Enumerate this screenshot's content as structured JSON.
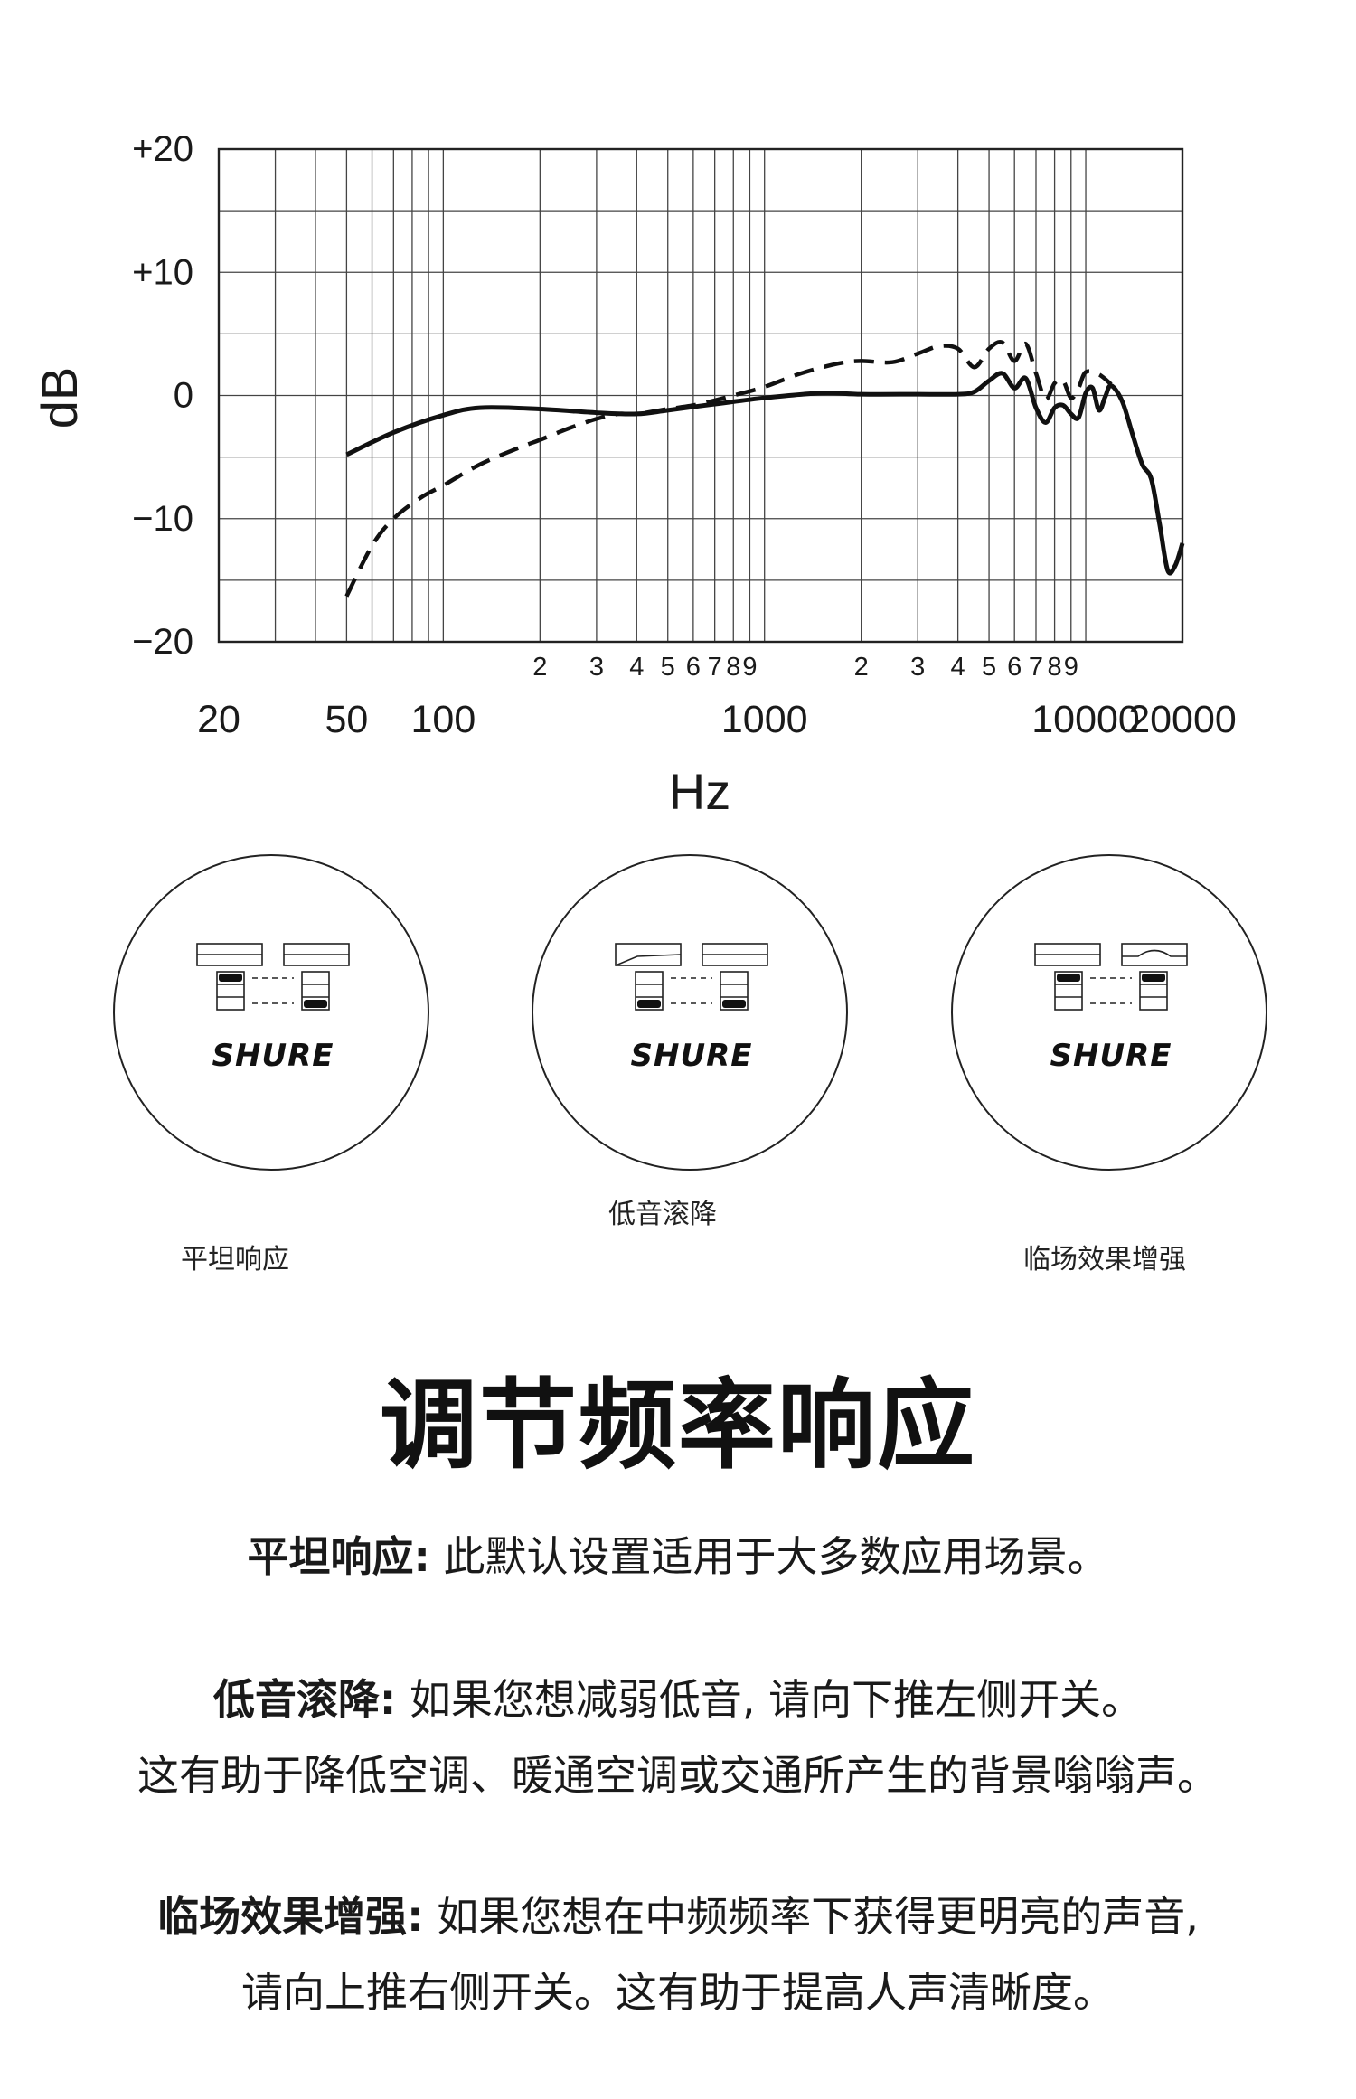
{
  "chart_data": {
    "type": "line",
    "xscale": "log",
    "xlim": [
      20,
      20000
    ],
    "ylim": [
      -20,
      20
    ],
    "xlabel": "Hz",
    "ylabel": "dB",
    "y_ticks": [
      "+20",
      "+10",
      "0",
      "−10",
      "−20"
    ],
    "y_tick_values": [
      20,
      10,
      0,
      -10,
      -20
    ],
    "x_ticks_major": [
      {
        "value": 20,
        "label": "20"
      },
      {
        "value": 50,
        "label": "50"
      },
      {
        "value": 100,
        "label": "100"
      },
      {
        "value": 1000,
        "label": "1000"
      },
      {
        "value": 10000,
        "label": "10000"
      },
      {
        "value": 20000,
        "label": "20000"
      }
    ],
    "x_ticks_minor": [
      {
        "value": 200,
        "label": "2"
      },
      {
        "value": 300,
        "label": "3"
      },
      {
        "value": 400,
        "label": "4"
      },
      {
        "value": 500,
        "label": "5"
      },
      {
        "value": 600,
        "label": "6"
      },
      {
        "value": 700,
        "label": "7"
      },
      {
        "value": 800,
        "label": "8"
      },
      {
        "value": 900,
        "label": "9"
      },
      {
        "value": 2000,
        "label": "2"
      },
      {
        "value": 3000,
        "label": "3"
      },
      {
        "value": 4000,
        "label": "4"
      },
      {
        "value": 5000,
        "label": "5"
      },
      {
        "value": 6000,
        "label": "6"
      },
      {
        "value": 7000,
        "label": "7"
      },
      {
        "value": 8000,
        "label": "8"
      },
      {
        "value": 9000,
        "label": "9"
      }
    ],
    "grid": true,
    "series": [
      {
        "style": "solid",
        "points": [
          [
            50,
            -4.8
          ],
          [
            70,
            -3.0
          ],
          [
            100,
            -1.6
          ],
          [
            130,
            -1.0
          ],
          [
            200,
            -1.1
          ],
          [
            300,
            -1.4
          ],
          [
            400,
            -1.5
          ],
          [
            500,
            -1.2
          ],
          [
            700,
            -0.7
          ],
          [
            1000,
            -0.2
          ],
          [
            1500,
            0.2
          ],
          [
            2000,
            0.1
          ],
          [
            3000,
            0.1
          ],
          [
            4000,
            0.1
          ],
          [
            4500,
            0.3
          ],
          [
            5000,
            1.2
          ],
          [
            5500,
            1.8
          ],
          [
            6000,
            0.6
          ],
          [
            6500,
            1.4
          ],
          [
            7000,
            -1.0
          ],
          [
            7500,
            -2.2
          ],
          [
            8000,
            -1.0
          ],
          [
            8500,
            -0.8
          ],
          [
            9000,
            -1.5
          ],
          [
            9500,
            -1.8
          ],
          [
            10000,
            0.2
          ],
          [
            10500,
            0.6
          ],
          [
            11000,
            -1.2
          ],
          [
            11500,
            -0.1
          ],
          [
            12000,
            0.8
          ],
          [
            13000,
            -0.5
          ],
          [
            14000,
            -3.2
          ],
          [
            15000,
            -5.6
          ],
          [
            16000,
            -6.8
          ],
          [
            17000,
            -10.5
          ],
          [
            18000,
            -14.2
          ],
          [
            19000,
            -13.8
          ],
          [
            20000,
            -12.0
          ]
        ]
      },
      {
        "style": "dashed",
        "points": [
          [
            50,
            -16.3
          ],
          [
            60,
            -12.2
          ],
          [
            70,
            -10.0
          ],
          [
            85,
            -8.3
          ],
          [
            100,
            -7.3
          ],
          [
            130,
            -5.6
          ],
          [
            170,
            -4.3
          ],
          [
            200,
            -3.6
          ],
          [
            250,
            -2.6
          ],
          [
            300,
            -1.9
          ],
          [
            350,
            -1.5
          ],
          [
            400,
            -1.5
          ],
          [
            500,
            -1.1
          ],
          [
            600,
            -0.8
          ],
          [
            700,
            -0.4
          ],
          [
            800,
            0.0
          ],
          [
            1000,
            0.7
          ],
          [
            1300,
            1.8
          ],
          [
            1700,
            2.6
          ],
          [
            2000,
            2.8
          ],
          [
            2500,
            2.7
          ],
          [
            3000,
            3.4
          ],
          [
            3500,
            4.0
          ],
          [
            4000,
            3.8
          ],
          [
            4500,
            2.3
          ],
          [
            5000,
            3.8
          ],
          [
            5500,
            4.3
          ],
          [
            6000,
            2.8
          ],
          [
            6500,
            4.2
          ],
          [
            7000,
            1.8
          ],
          [
            7500,
            -0.3
          ],
          [
            8000,
            1.0
          ],
          [
            8500,
            1.2
          ],
          [
            9000,
            -0.2
          ],
          [
            9500,
            0.6
          ],
          [
            10000,
            1.9
          ],
          [
            11000,
            1.7
          ],
          [
            12000,
            0.9
          ]
        ]
      }
    ]
  },
  "switches": [
    {
      "caption": "平坦响应",
      "brand": "SHURE"
    },
    {
      "caption": "低音滚降",
      "brand": "SHURE"
    },
    {
      "caption": "临场效果增强",
      "brand": "SHURE"
    }
  ],
  "title": "调节频率响应",
  "paragraphs": [
    {
      "bold": "平坦响应:",
      "line1": " 此默认设置适用于大多数应用场景。",
      "line2": ""
    },
    {
      "bold": "低音滚降:",
      "line1": " 如果您想减弱低音, 请向下推左侧开关。",
      "line2": "这有助于降低空调、暖通空调或交通所产生的背景嗡嗡声。"
    },
    {
      "bold": "临场效果增强:",
      "line1": " 如果您想在中频频率下获得更明亮的声音,",
      "line2": "请向上推右侧开关。这有助于提高人声清晰度。"
    }
  ],
  "colors": {
    "ink": "#1a1a1a",
    "background": "#ffffff",
    "switch_fill": "#111111"
  }
}
